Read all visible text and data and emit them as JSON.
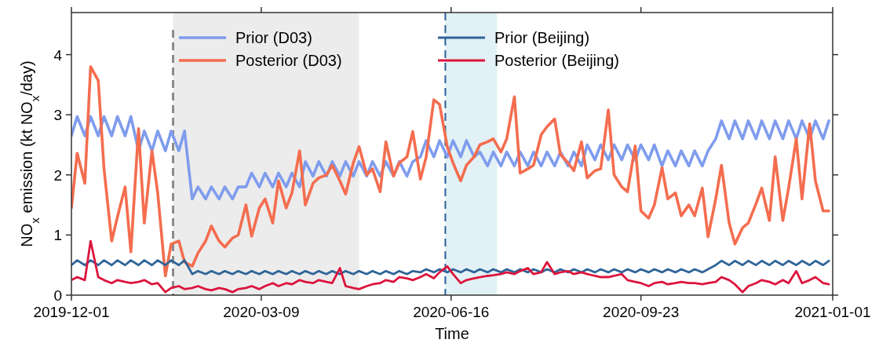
{
  "chart_data": {
    "type": "line",
    "xlabel": "Time",
    "ylabel": "NO$_{x}$ emission  (kt NO$_{x}$/day)",
    "x": [
      "2019-12-01",
      "2019-12-04",
      "2019-12-08",
      "2019-12-11",
      "2019-12-15",
      "2019-12-18",
      "2019-12-22",
      "2019-12-25",
      "2019-12-29",
      "2020-01-01",
      "2020-01-05",
      "2020-01-08",
      "2020-01-12",
      "2020-01-15",
      "2020-01-19",
      "2020-01-22",
      "2020-01-26",
      "2020-01-29",
      "2020-02-02",
      "2020-02-05",
      "2020-02-09",
      "2020-02-12",
      "2020-02-16",
      "2020-02-19",
      "2020-02-23",
      "2020-02-26",
      "2020-03-01",
      "2020-03-04",
      "2020-03-08",
      "2020-03-11",
      "2020-03-15",
      "2020-03-18",
      "2020-03-22",
      "2020-03-25",
      "2020-03-29",
      "2020-04-01",
      "2020-04-05",
      "2020-04-08",
      "2020-04-12",
      "2020-04-15",
      "2020-04-19",
      "2020-04-22",
      "2020-04-26",
      "2020-04-29",
      "2020-05-03",
      "2020-05-06",
      "2020-05-10",
      "2020-05-13",
      "2020-05-17",
      "2020-05-20",
      "2020-05-24",
      "2020-05-27",
      "2020-05-31",
      "2020-06-03",
      "2020-06-07",
      "2020-06-10",
      "2020-06-14",
      "2020-06-17",
      "2020-06-21",
      "2020-06-24",
      "2020-06-28",
      "2020-07-01",
      "2020-07-05",
      "2020-07-08",
      "2020-07-12",
      "2020-07-15",
      "2020-07-19",
      "2020-07-22",
      "2020-07-26",
      "2020-07-29",
      "2020-08-02",
      "2020-08-05",
      "2020-08-09",
      "2020-08-12",
      "2020-08-16",
      "2020-08-19",
      "2020-08-23",
      "2020-08-26",
      "2020-08-30",
      "2020-09-02",
      "2020-09-06",
      "2020-09-09",
      "2020-09-13",
      "2020-09-16",
      "2020-09-20",
      "2020-09-23",
      "2020-09-27",
      "2020-09-30",
      "2020-10-04",
      "2020-10-07",
      "2020-10-11",
      "2020-10-14",
      "2020-10-18",
      "2020-10-21",
      "2020-10-25",
      "2020-10-28",
      "2020-11-01",
      "2020-11-04",
      "2020-11-08",
      "2020-11-11",
      "2020-11-15",
      "2020-11-18",
      "2020-11-22",
      "2020-11-25",
      "2020-11-29",
      "2020-12-02",
      "2020-12-06",
      "2020-12-09",
      "2020-12-13",
      "2020-12-16",
      "2020-12-20",
      "2020-12-23",
      "2020-12-27",
      "2020-12-30"
    ],
    "series": [
      {
        "name": "Prior (D03)",
        "color": "#7f9ced",
        "values": [
          2.65,
          2.97,
          2.65,
          2.97,
          2.65,
          2.97,
          2.65,
          2.97,
          2.65,
          2.97,
          2.4,
          2.73,
          2.4,
          2.73,
          2.4,
          2.73,
          2.4,
          2.73,
          1.6,
          1.8,
          1.6,
          1.8,
          1.6,
          1.8,
          1.6,
          1.8,
          1.8,
          2.03,
          1.8,
          2.03,
          1.8,
          2.03,
          1.8,
          2.03,
          1.8,
          2.22,
          1.98,
          2.22,
          1.98,
          2.22,
          1.98,
          2.22,
          1.98,
          2.22,
          1.98,
          2.22,
          1.98,
          2.22,
          1.98,
          2.22,
          1.98,
          2.22,
          2.3,
          2.57,
          2.3,
          2.57,
          2.3,
          2.57,
          2.3,
          2.57,
          2.3,
          2.38,
          2.15,
          2.38,
          2.15,
          2.38,
          2.15,
          2.38,
          2.15,
          2.38,
          2.15,
          2.38,
          2.15,
          2.38,
          2.15,
          2.38,
          2.15,
          2.5,
          2.25,
          2.5,
          2.25,
          2.5,
          2.25,
          2.5,
          2.25,
          2.5,
          2.25,
          2.5,
          2.15,
          2.4,
          2.15,
          2.4,
          2.15,
          2.4,
          2.15,
          2.4,
          2.6,
          2.9,
          2.6,
          2.9,
          2.6,
          2.9,
          2.6,
          2.9,
          2.6,
          2.9,
          2.6,
          2.9,
          2.6,
          2.9,
          2.6,
          2.9,
          2.6,
          2.9
        ]
      },
      {
        "name": "Posterior (D03)",
        "color": "#f46d4f",
        "values": [
          1.45,
          2.36,
          1.86,
          3.8,
          3.57,
          2.1,
          0.9,
          1.3,
          1.8,
          0.72,
          2.77,
          1.2,
          2.4,
          1.7,
          0.32,
          0.85,
          0.9,
          0.55,
          0.48,
          0.7,
          0.9,
          1.15,
          0.9,
          0.8,
          0.95,
          1.0,
          1.5,
          0.98,
          1.45,
          1.6,
          1.2,
          1.9,
          1.45,
          1.7,
          2.4,
          1.5,
          1.86,
          1.95,
          2.0,
          2.16,
          1.9,
          1.68,
          2.2,
          2.47,
          2.0,
          2.1,
          1.72,
          2.55,
          1.98,
          2.2,
          2.3,
          2.72,
          1.93,
          2.3,
          3.25,
          3.17,
          2.47,
          2.2,
          1.9,
          2.16,
          2.3,
          2.5,
          2.55,
          2.6,
          2.38,
          2.6,
          3.3,
          2.03,
          2.1,
          2.16,
          2.67,
          2.8,
          2.93,
          2.34,
          2.2,
          2.07,
          2.55,
          1.95,
          2.07,
          2.1,
          3.08,
          2.0,
          1.8,
          1.72,
          2.48,
          1.4,
          1.28,
          1.5,
          2.12,
          1.6,
          1.7,
          1.32,
          1.5,
          1.32,
          1.78,
          0.97,
          1.6,
          2.16,
          1.2,
          0.85,
          1.12,
          1.2,
          1.52,
          1.78,
          1.24,
          2.3,
          1.24,
          1.78,
          2.6,
          1.6,
          2.85,
          1.9,
          1.4,
          1.4
        ]
      },
      {
        "name": "Prior (Beijing)",
        "color": "#306598",
        "values": [
          0.5,
          0.58,
          0.5,
          0.58,
          0.5,
          0.58,
          0.5,
          0.58,
          0.5,
          0.58,
          0.5,
          0.58,
          0.5,
          0.58,
          0.5,
          0.58,
          0.5,
          0.58,
          0.35,
          0.4,
          0.35,
          0.4,
          0.35,
          0.4,
          0.35,
          0.4,
          0.35,
          0.4,
          0.35,
          0.4,
          0.35,
          0.4,
          0.35,
          0.4,
          0.35,
          0.4,
          0.35,
          0.4,
          0.35,
          0.4,
          0.35,
          0.4,
          0.35,
          0.4,
          0.35,
          0.4,
          0.35,
          0.4,
          0.35,
          0.4,
          0.35,
          0.4,
          0.38,
          0.43,
          0.38,
          0.43,
          0.38,
          0.43,
          0.38,
          0.43,
          0.38,
          0.43,
          0.38,
          0.43,
          0.38,
          0.43,
          0.38,
          0.43,
          0.38,
          0.43,
          0.38,
          0.43,
          0.38,
          0.43,
          0.38,
          0.43,
          0.38,
          0.43,
          0.38,
          0.43,
          0.38,
          0.43,
          0.38,
          0.43,
          0.38,
          0.43,
          0.38,
          0.43,
          0.38,
          0.43,
          0.38,
          0.43,
          0.38,
          0.43,
          0.38,
          0.43,
          0.5,
          0.57,
          0.5,
          0.57,
          0.5,
          0.57,
          0.5,
          0.57,
          0.5,
          0.57,
          0.5,
          0.57,
          0.5,
          0.57,
          0.5,
          0.57,
          0.5,
          0.57
        ]
      },
      {
        "name": "Posterior (Beijing)",
        "color": "#dc143c",
        "values": [
          0.25,
          0.3,
          0.25,
          0.9,
          0.3,
          0.25,
          0.2,
          0.25,
          0.22,
          0.2,
          0.22,
          0.25,
          0.18,
          0.2,
          0.05,
          0.12,
          0.15,
          0.1,
          0.12,
          0.15,
          0.1,
          0.08,
          0.12,
          0.1,
          0.05,
          0.1,
          0.12,
          0.15,
          0.1,
          0.15,
          0.2,
          0.15,
          0.2,
          0.18,
          0.25,
          0.22,
          0.2,
          0.25,
          0.22,
          0.2,
          0.45,
          0.15,
          0.12,
          0.1,
          0.15,
          0.18,
          0.2,
          0.25,
          0.22,
          0.3,
          0.28,
          0.25,
          0.3,
          0.35,
          0.28,
          0.38,
          0.48,
          0.35,
          0.2,
          0.25,
          0.28,
          0.3,
          0.32,
          0.33,
          0.35,
          0.38,
          0.35,
          0.4,
          0.45,
          0.35,
          0.38,
          0.55,
          0.35,
          0.38,
          0.4,
          0.35,
          0.38,
          0.35,
          0.32,
          0.3,
          0.3,
          0.32,
          0.35,
          0.25,
          0.22,
          0.2,
          0.15,
          0.2,
          0.22,
          0.18,
          0.2,
          0.22,
          0.2,
          0.2,
          0.18,
          0.2,
          0.22,
          0.3,
          0.25,
          0.18,
          0.05,
          0.15,
          0.2,
          0.25,
          0.22,
          0.18,
          0.25,
          0.2,
          0.4,
          0.2,
          0.25,
          0.3,
          0.2,
          0.18
        ]
      }
    ],
    "xlim": [
      "2019-12-01",
      "2021-01-01"
    ],
    "xticks": [
      "2019-12-01",
      "2020-03-09",
      "2020-06-16",
      "2020-09-23",
      "2021-01-01"
    ],
    "ylim": [
      0,
      4.7
    ],
    "yticks": [
      0,
      1,
      2,
      3,
      4
    ],
    "ref_lines": [
      {
        "axis": "x",
        "value": "2020-01-23",
        "color": "#8c8c8c",
        "line_style": "dashed"
      },
      {
        "axis": "x",
        "value": "2020-06-13",
        "color": "#2a6099",
        "line_style": "dashed"
      }
    ],
    "bands": [
      {
        "axis": "x",
        "from": "2020-01-23",
        "to": "2020-04-29",
        "color": "#ececec"
      },
      {
        "axis": "x",
        "from": "2020-06-13",
        "to": "2020-07-10",
        "color": "#e2f1f5"
      }
    ],
    "legend": "top",
    "grid": false,
    "marker": "none",
    "line_style": "solid"
  }
}
